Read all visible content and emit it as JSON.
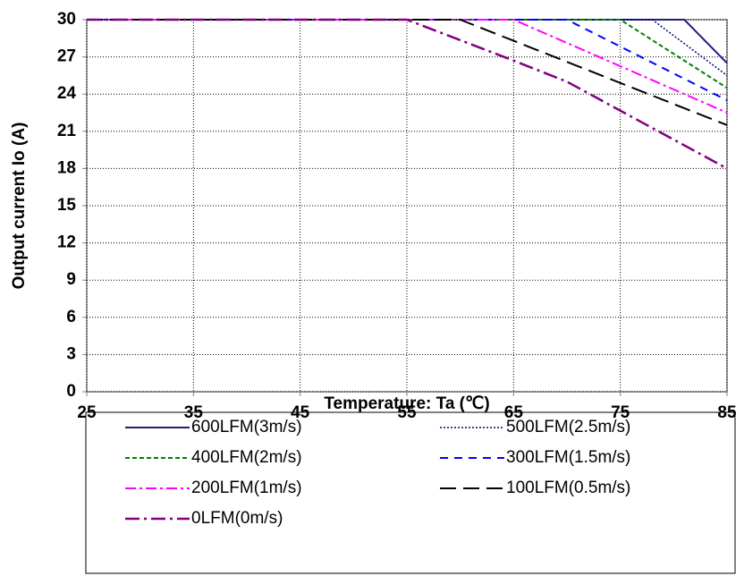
{
  "chart_data": {
    "type": "line",
    "x_label": "Temperature: Ta (℃)",
    "y_label": "Output current  Io (A)",
    "xlim": [
      25,
      85
    ],
    "xticks": [
      25,
      35,
      45,
      55,
      65,
      75,
      85
    ],
    "ylim": [
      0,
      30
    ],
    "yticks": [
      0,
      3,
      6,
      9,
      12,
      15,
      18,
      21,
      24,
      27,
      30
    ],
    "grid": true,
    "legend": "bottom",
    "series": [
      {
        "name": "600LFM(3m/s)",
        "color": "#1f1f7a",
        "x": [
          25,
          81,
          85
        ],
        "values": [
          30,
          30,
          26.5
        ]
      },
      {
        "name": "500LFM(2.5m/s)",
        "color": "#000080",
        "x": [
          25,
          78,
          85
        ],
        "values": [
          30,
          30,
          25.5
        ]
      },
      {
        "name": "400LFM(2m/s)",
        "color": "#008000",
        "x": [
          25,
          75,
          85
        ],
        "values": [
          30,
          30,
          24.5
        ]
      },
      {
        "name": "300LFM(1.5m/s)",
        "color": "#0000ff",
        "x": [
          25,
          70,
          85
        ],
        "values": [
          30,
          30,
          23.5
        ]
      },
      {
        "name": "200LFM(1m/s)",
        "color": "#ff00ff",
        "x": [
          25,
          65,
          85
        ],
        "values": [
          30,
          30,
          22.5
        ]
      },
      {
        "name": "100LFM(0.5m/s)",
        "color": "#000000",
        "x": [
          25,
          60,
          85
        ],
        "values": [
          30,
          30,
          21.5
        ]
      },
      {
        "name": "0LFM(0m/s)",
        "color": "#800080",
        "x": [
          25,
          55,
          65,
          70,
          85
        ],
        "values": [
          30,
          30,
          26.7,
          25,
          18
        ]
      }
    ]
  }
}
